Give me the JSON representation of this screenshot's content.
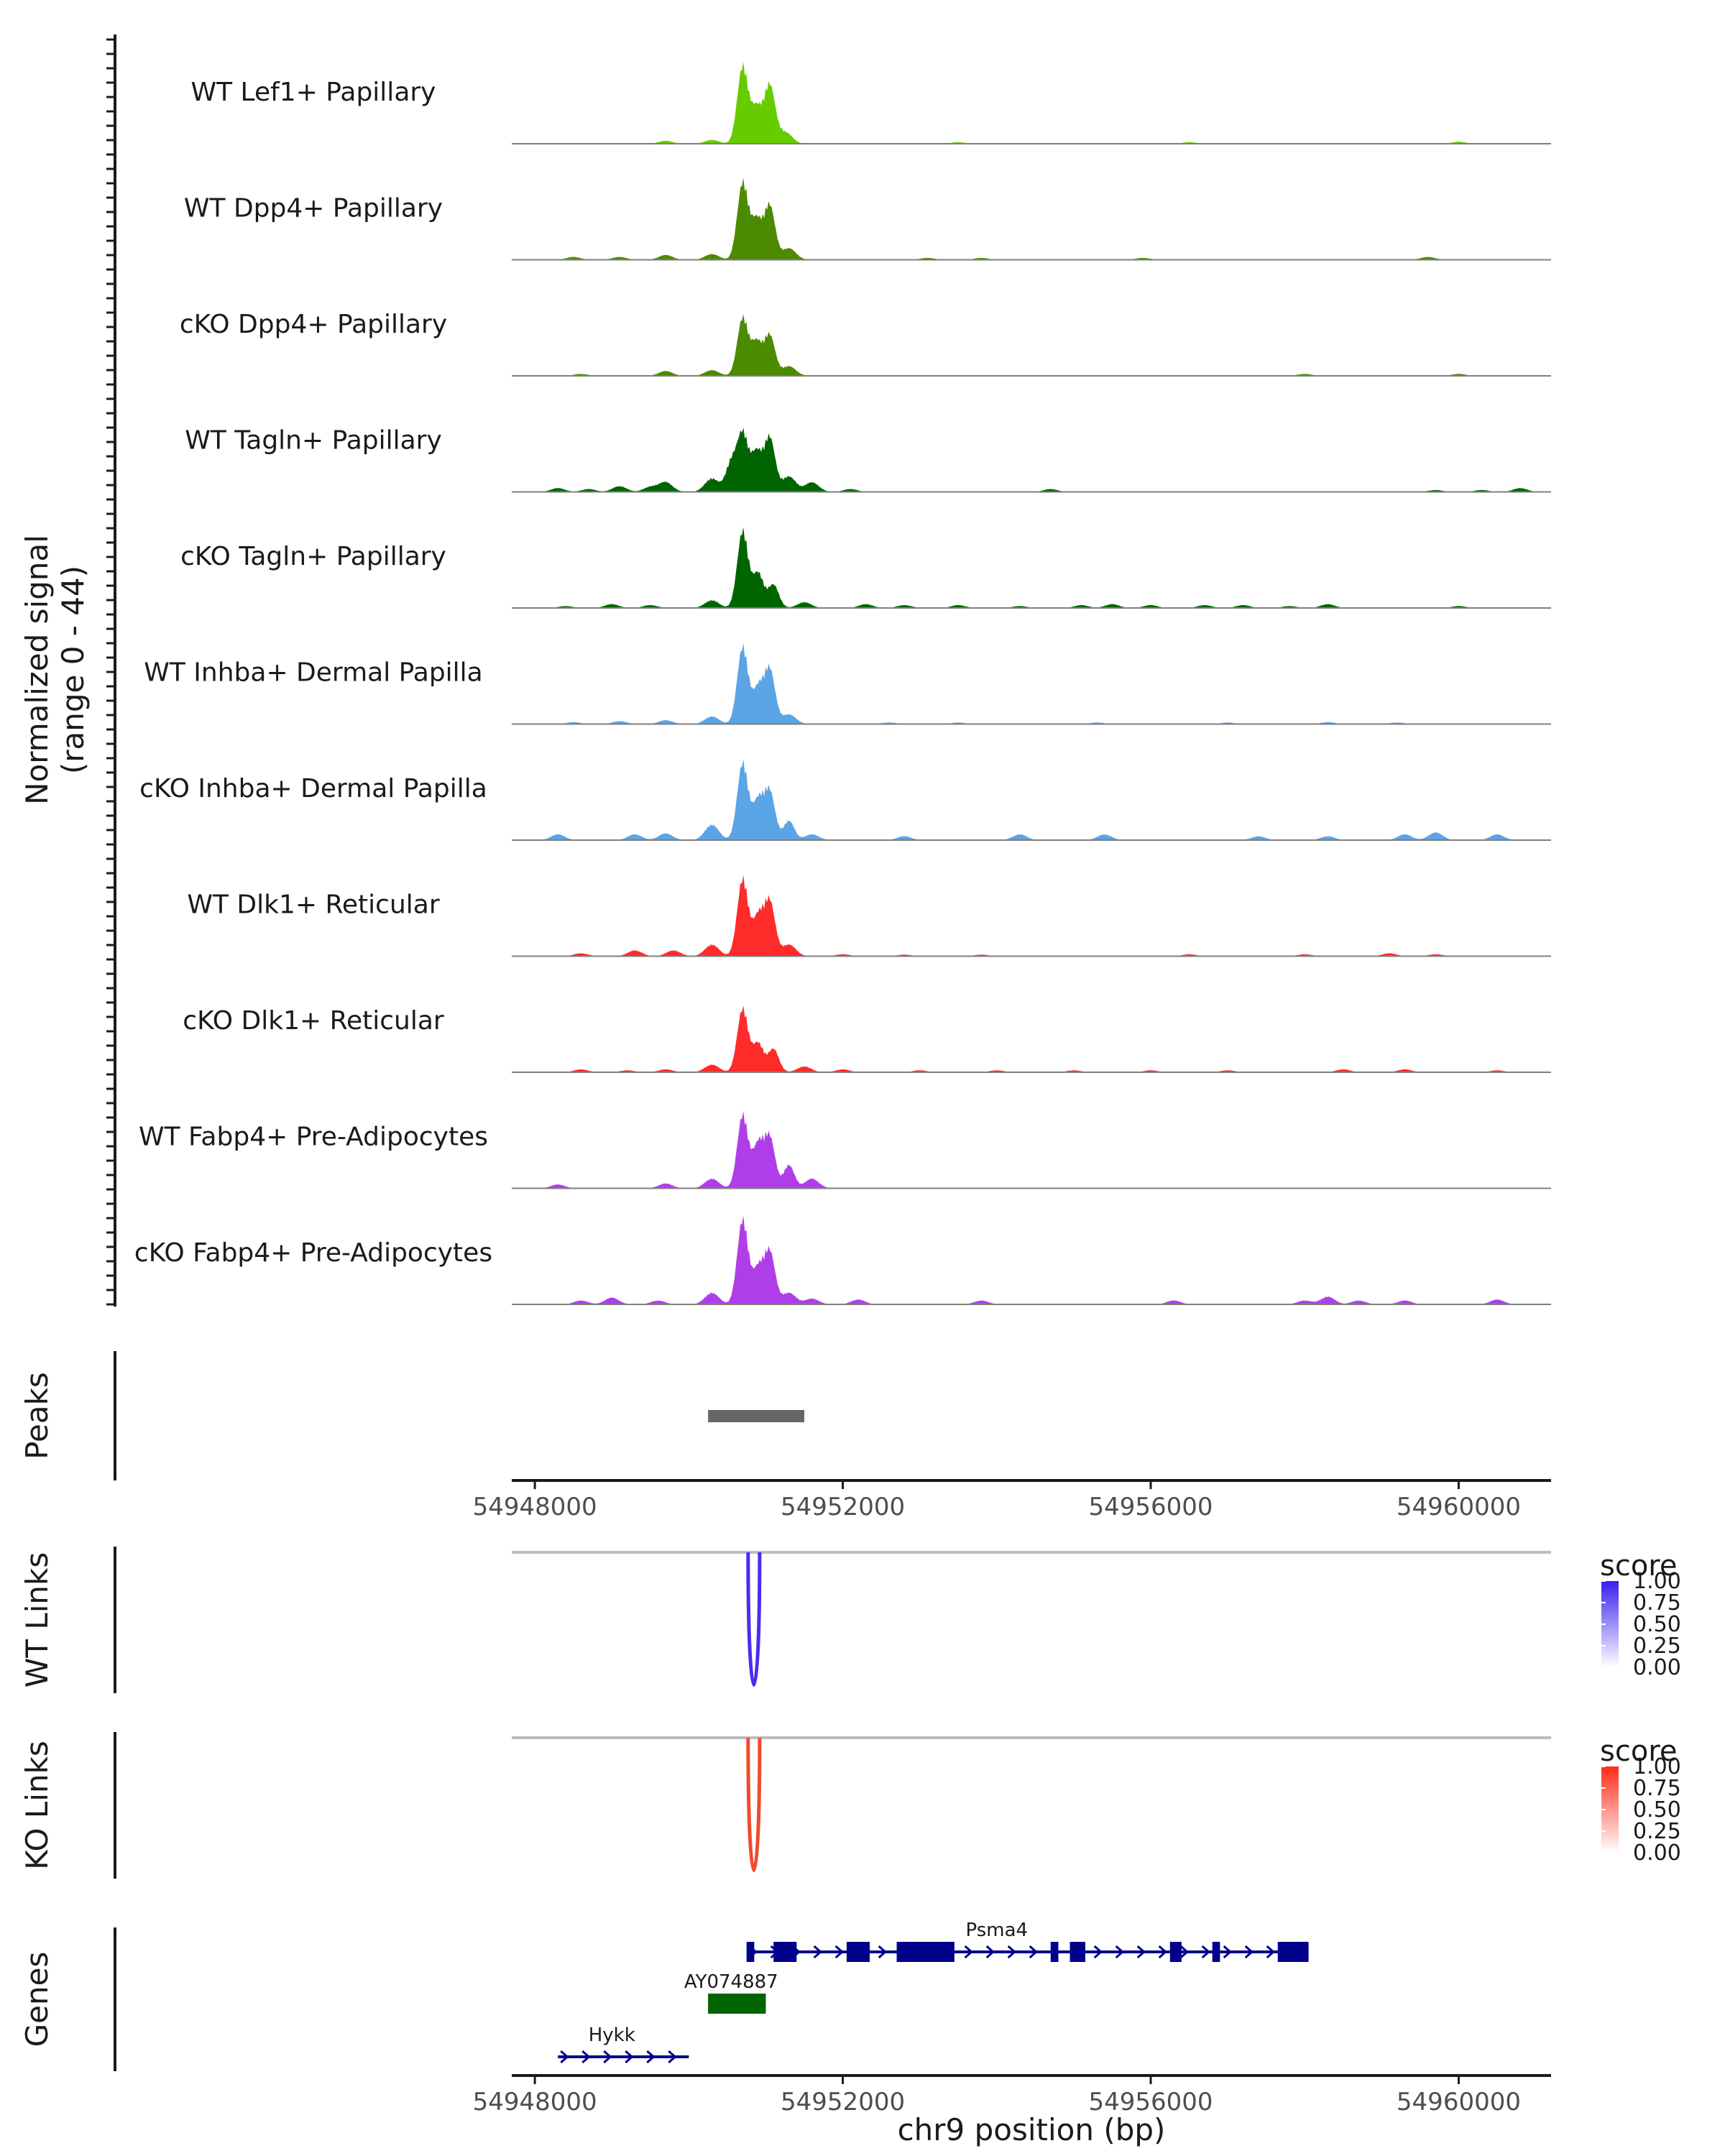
{
  "chart_data": {
    "type": "coverage",
    "chrom": "chr9",
    "xlim": [
      54947700,
      54961200
    ],
    "ylim": [
      0,
      44
    ],
    "coverage_ylabel": [
      "Normalized signal",
      "(range 0 - 44)"
    ],
    "xlabel": "chr9 position (bp)",
    "x_ticks": [
      54948000,
      54952000,
      54956000,
      54960000
    ],
    "x_tick_labels": [
      "54948000",
      "54952000",
      "54956000",
      "54960000"
    ],
    "tracks": [
      {
        "name": "WT Lef1+ Papillary",
        "color": "#66cc00",
        "peaks": [
          [
            54949700,
            1.5
          ],
          [
            54950300,
            2
          ],
          [
            54950700,
            40
          ],
          [
            54950880,
            18
          ],
          [
            54951050,
            30
          ],
          [
            54951250,
            6
          ],
          [
            54953500,
            0.8
          ],
          [
            54956500,
            0.8
          ],
          [
            54960000,
            1
          ]
        ]
      },
      {
        "name": "WT Dpp4+ Papillary",
        "color": "#4c8a00",
        "peaks": [
          [
            54948500,
            1.5
          ],
          [
            54949100,
            1.5
          ],
          [
            54949700,
            2.5
          ],
          [
            54950300,
            3
          ],
          [
            54950700,
            40
          ],
          [
            54950880,
            20
          ],
          [
            54951050,
            28
          ],
          [
            54951300,
            6
          ],
          [
            54953100,
            1
          ],
          [
            54953800,
            1
          ],
          [
            54955900,
            1
          ],
          [
            54959600,
            1.5
          ]
        ]
      },
      {
        "name": "cKO Dpp4+ Papillary",
        "color": "#4c8a00",
        "peaks": [
          [
            54948600,
            1
          ],
          [
            54949700,
            2.5
          ],
          [
            54950300,
            3
          ],
          [
            54950700,
            30
          ],
          [
            54950880,
            17
          ],
          [
            54951050,
            21
          ],
          [
            54951300,
            5
          ],
          [
            54958000,
            1
          ],
          [
            54960000,
            1
          ]
        ]
      },
      {
        "name": "WT Tagln+ Papillary",
        "color": "#006400",
        "peaks": [
          [
            54948300,
            2
          ],
          [
            54948700,
            1.5
          ],
          [
            54949100,
            3
          ],
          [
            54949500,
            2.5
          ],
          [
            54949700,
            5
          ],
          [
            54950300,
            7
          ],
          [
            54950550,
            15
          ],
          [
            54950700,
            30
          ],
          [
            54950880,
            20
          ],
          [
            54951050,
            28
          ],
          [
            54951300,
            8
          ],
          [
            54951600,
            5
          ],
          [
            54952100,
            1.5
          ],
          [
            54954700,
            1.5
          ],
          [
            54959700,
            1
          ],
          [
            54960300,
            1
          ],
          [
            54960800,
            2
          ]
        ]
      },
      {
        "name": "cKO Tagln+ Papillary",
        "color": "#006400",
        "peaks": [
          [
            54948400,
            1
          ],
          [
            54949000,
            2
          ],
          [
            54949500,
            1.5
          ],
          [
            54950300,
            4
          ],
          [
            54950700,
            40
          ],
          [
            54950900,
            18
          ],
          [
            54951100,
            12
          ],
          [
            54951500,
            3
          ],
          [
            54952300,
            2
          ],
          [
            54952800,
            1.5
          ],
          [
            54953500,
            1.5
          ],
          [
            54954300,
            1
          ],
          [
            54955100,
            1.5
          ],
          [
            54955500,
            2
          ],
          [
            54956000,
            1.5
          ],
          [
            54956700,
            1.5
          ],
          [
            54957200,
            1.5
          ],
          [
            54957800,
            1
          ],
          [
            54958300,
            2
          ],
          [
            54960000,
            1
          ]
        ]
      },
      {
        "name": "WT Inhba+ Dermal Papilla",
        "color": "#5ba4e5",
        "peaks": [
          [
            54948500,
            1
          ],
          [
            54949100,
            1.5
          ],
          [
            54949700,
            2
          ],
          [
            54950300,
            4
          ],
          [
            54950700,
            40
          ],
          [
            54950900,
            18
          ],
          [
            54951050,
            28
          ],
          [
            54951300,
            5
          ],
          [
            54952600,
            0.8
          ],
          [
            54953500,
            0.8
          ],
          [
            54955300,
            0.8
          ],
          [
            54957000,
            0.8
          ],
          [
            54958300,
            1
          ],
          [
            54959200,
            0.8
          ]
        ]
      },
      {
        "name": "cKO Inhba+ Dermal Papilla",
        "color": "#5ba4e5",
        "peaks": [
          [
            54948300,
            3
          ],
          [
            54949300,
            3
          ],
          [
            54949700,
            3.5
          ],
          [
            54950300,
            8
          ],
          [
            54950700,
            40
          ],
          [
            54950900,
            20
          ],
          [
            54951050,
            25
          ],
          [
            54951300,
            10
          ],
          [
            54951600,
            3
          ],
          [
            54952800,
            2
          ],
          [
            54954300,
            3
          ],
          [
            54955400,
            3
          ],
          [
            54957400,
            2
          ],
          [
            54958300,
            2
          ],
          [
            54959300,
            3
          ],
          [
            54959700,
            4
          ],
          [
            54960500,
            3
          ]
        ]
      },
      {
        "name": "WT Dlk1+ Reticular",
        "color": "#ff2a2a",
        "peaks": [
          [
            54948600,
            1.5
          ],
          [
            54949300,
            3
          ],
          [
            54949800,
            3
          ],
          [
            54950300,
            6
          ],
          [
            54950700,
            40
          ],
          [
            54950900,
            20
          ],
          [
            54951050,
            28
          ],
          [
            54951300,
            6
          ],
          [
            54952000,
            1
          ],
          [
            54952800,
            0.8
          ],
          [
            54953800,
            0.8
          ],
          [
            54956500,
            1
          ],
          [
            54958000,
            1
          ],
          [
            54959100,
            1.5
          ],
          [
            54959700,
            1
          ]
        ]
      },
      {
        "name": "cKO Dlk1+ Reticular",
        "color": "#ff2a2a",
        "peaks": [
          [
            54948600,
            1.5
          ],
          [
            54949200,
            1
          ],
          [
            54949700,
            1.5
          ],
          [
            54950300,
            4
          ],
          [
            54950700,
            33
          ],
          [
            54950900,
            15
          ],
          [
            54951100,
            12
          ],
          [
            54951500,
            3
          ],
          [
            54952000,
            1.5
          ],
          [
            54953000,
            1
          ],
          [
            54954000,
            1
          ],
          [
            54955000,
            1
          ],
          [
            54956000,
            1
          ],
          [
            54957000,
            1
          ],
          [
            54958500,
            1.5
          ],
          [
            54959300,
            1.5
          ],
          [
            54960500,
            1
          ]
        ]
      },
      {
        "name": "WT Fabp4+ Pre-Adipocytes",
        "color": "#b03ee8",
        "peaks": [
          [
            54948300,
            2
          ],
          [
            54949700,
            2.5
          ],
          [
            54950300,
            5
          ],
          [
            54950700,
            38
          ],
          [
            54950900,
            22
          ],
          [
            54951050,
            26
          ],
          [
            54951300,
            12
          ],
          [
            54951600,
            5
          ]
        ]
      },
      {
        "name": "cKO Fabp4+ Pre-Adipocytes",
        "color": "#b03ee8",
        "peaks": [
          [
            54948600,
            2
          ],
          [
            54949000,
            3.5
          ],
          [
            54949600,
            2
          ],
          [
            54950300,
            6
          ],
          [
            54950700,
            44
          ],
          [
            54950900,
            18
          ],
          [
            54951050,
            27
          ],
          [
            54951300,
            6
          ],
          [
            54951600,
            3
          ],
          [
            54952200,
            2.5
          ],
          [
            54953800,
            2
          ],
          [
            54956300,
            2
          ],
          [
            54958000,
            2
          ],
          [
            54958300,
            4
          ],
          [
            54958700,
            2
          ],
          [
            54959300,
            2
          ],
          [
            54960500,
            2.5
          ]
        ]
      }
    ],
    "peaks_track": {
      "label": "Peaks",
      "regions": [
        [
          54950250,
          54951500
        ]
      ],
      "color": "#666666"
    },
    "links": [
      {
        "label": "WT Links",
        "color": "#4a2cf0",
        "arcs": [
          {
            "start": 54950770,
            "end": 54950920,
            "score": 1.0
          }
        ],
        "legend": {
          "title": "score",
          "ticks": [
            "1.00",
            "0.75",
            "0.50",
            "0.25",
            "0.00"
          ],
          "low": "#ffffff",
          "high": "#3a1ff0"
        }
      },
      {
        "label": "KO Links",
        "color": "#f04a2c",
        "arcs": [
          {
            "start": 54950770,
            "end": 54950920,
            "score": 1.0
          }
        ],
        "legend": {
          "title": "score",
          "ticks": [
            "1.00",
            "0.75",
            "0.50",
            "0.25",
            "0.00"
          ],
          "low": "#ffffff",
          "high": "#ff2a1a"
        }
      }
    ],
    "genes": {
      "label": "Genes",
      "items": [
        {
          "name": "Psma4",
          "strand": "+",
          "row": 0,
          "color": "#00008b",
          "start": 54950750,
          "end": 54958050,
          "exons": [
            [
              54950750,
              54950850
            ],
            [
              54951100,
              54951400
            ],
            [
              54952050,
              54952350
            ],
            [
              54952700,
              54953450
            ],
            [
              54954700,
              54954800
            ],
            [
              54954950,
              54955150
            ],
            [
              54956250,
              54956400
            ],
            [
              54956800,
              54956900
            ],
            [
              54957650,
              54958050
            ]
          ],
          "label_x": 54954000
        },
        {
          "name": "AY074887",
          "strand": "+",
          "row": 1,
          "color": "#006400",
          "start": 54950250,
          "end": 54951000,
          "exons": [
            [
              54950250,
              54951000
            ]
          ],
          "label_x": 54950550
        },
        {
          "name": "Hykk",
          "strand": "+",
          "row": 2,
          "color": "#00008b",
          "start": 54948300,
          "end": 54950000,
          "exons": [],
          "label_x": 54949000
        }
      ]
    }
  }
}
